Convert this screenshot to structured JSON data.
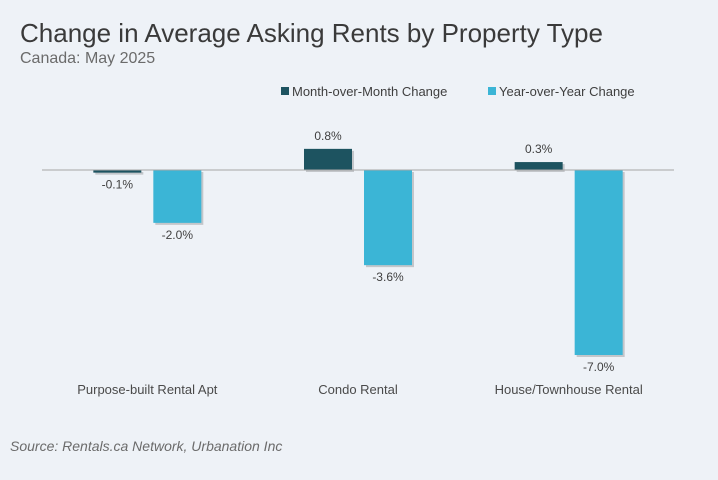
{
  "chart_data": {
    "type": "bar",
    "title": "Change in Average Asking Rents by Property Type",
    "subtitle": "Canada: May 2025",
    "source": "Source: Rentals.ca Network, Urbanation Inc",
    "categories": [
      "Purpose-built Rental Apt",
      "Condo Rental",
      "House/Townhouse Rental"
    ],
    "series": [
      {
        "name": "Month-over-Month Change",
        "values": [
          -0.1,
          0.8,
          0.3
        ],
        "labels": [
          "-0.1%",
          "0.8%",
          "0.3%"
        ],
        "color": "#1d5360"
      },
      {
        "name": "Year-over-Year Change",
        "values": [
          -2.0,
          -3.6,
          -7.0
        ],
        "labels": [
          "-2.0%",
          "-3.6%",
          "-7.0%"
        ],
        "color": "#3bb5d6"
      }
    ],
    "ylim": [
      -7.5,
      1.2
    ],
    "grid": false,
    "legend_position": "top-center"
  }
}
